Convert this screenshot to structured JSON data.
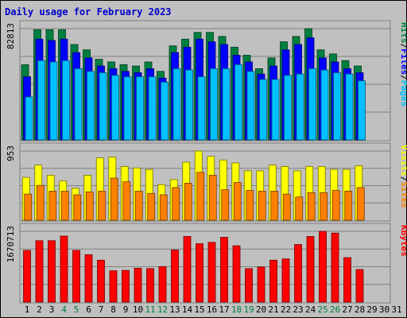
{
  "title": "Daily usage for February 2023",
  "colors": {
    "background": "#c0c0c0",
    "title": "#0000cc",
    "hits": "#008040",
    "files": "#0000ff",
    "pages": "#00c0ff",
    "visits": "#ffff00",
    "sites": "#ff8000",
    "kbytes": "#ff0000",
    "weekend_label": "#008040",
    "weekday_label": "#000000"
  },
  "chart_data": [
    {
      "type": "bar",
      "panel": "top",
      "axis_max_label": "82813",
      "ylim": [
        0,
        82813
      ],
      "legend": [
        "Pages",
        "/",
        "Files",
        "/",
        "Hits"
      ],
      "categories": [
        "1",
        "2",
        "3",
        "4",
        "5",
        "6",
        "7",
        "8",
        "9",
        "10",
        "11",
        "12",
        "13",
        "14",
        "15",
        "16",
        "17",
        "18",
        "19",
        "20",
        "21",
        "22",
        "23",
        "24",
        "25",
        "26",
        "27",
        "28",
        "29",
        "30",
        "31"
      ],
      "weekend_days": [
        4,
        5,
        11,
        12,
        18,
        19,
        25,
        26
      ],
      "series": [
        {
          "name": "Hits",
          "values": [
            56000,
            82000,
            82000,
            82000,
            71000,
            67000,
            60000,
            58000,
            56000,
            55000,
            58000,
            51000,
            70000,
            75000,
            80000,
            80000,
            77000,
            69000,
            63000,
            53000,
            61000,
            73000,
            77000,
            82813,
            67000,
            64000,
            59000,
            55000,
            0,
            0,
            0
          ]
        },
        {
          "name": "Files",
          "values": [
            47000,
            75000,
            74000,
            75000,
            65000,
            61000,
            55000,
            53000,
            51000,
            50000,
            53000,
            46000,
            65000,
            69000,
            75000,
            73000,
            71000,
            63000,
            58000,
            49000,
            55000,
            67000,
            71000,
            76000,
            61000,
            58000,
            53000,
            50000,
            0,
            0,
            0
          ]
        },
        {
          "name": "Pages",
          "values": [
            32000,
            59000,
            58000,
            59000,
            53000,
            51000,
            50000,
            48000,
            47000,
            47000,
            47000,
            43000,
            53000,
            52000,
            47000,
            53000,
            53000,
            56000,
            51000,
            45000,
            45000,
            48000,
            49000,
            53000,
            52000,
            50000,
            49000,
            44000,
            0,
            0,
            0
          ]
        }
      ]
    },
    {
      "type": "bar",
      "panel": "middle",
      "axis_max_label": "953",
      "ylim": [
        0,
        953
      ],
      "legend": [
        "Sites",
        "/",
        "Visits"
      ],
      "categories": [
        "1",
        "2",
        "3",
        "4",
        "5",
        "6",
        "7",
        "8",
        "9",
        "10",
        "11",
        "12",
        "13",
        "14",
        "15",
        "16",
        "17",
        "18",
        "19",
        "20",
        "21",
        "22",
        "23",
        "24",
        "25",
        "26",
        "27",
        "28",
        "29",
        "30",
        "31"
      ],
      "weekend_days": [
        4,
        5,
        11,
        12,
        18,
        19,
        25,
        26
      ],
      "series": [
        {
          "name": "Visits",
          "values": [
            590,
            760,
            620,
            540,
            440,
            620,
            860,
            870,
            740,
            720,
            700,
            490,
            560,
            800,
            953,
            880,
            830,
            790,
            680,
            680,
            760,
            740,
            680,
            740,
            740,
            700,
            700,
            750,
            0,
            0,
            0
          ]
        },
        {
          "name": "Sites",
          "values": [
            360,
            480,
            400,
            400,
            350,
            390,
            400,
            580,
            530,
            400,
            370,
            350,
            450,
            510,
            660,
            620,
            420,
            520,
            410,
            400,
            400,
            360,
            320,
            380,
            380,
            410,
            400,
            450,
            0,
            0,
            0
          ]
        }
      ]
    },
    {
      "type": "bar",
      "panel": "bottom",
      "axis_max_label": "1670713",
      "ylim": [
        0,
        1670713
      ],
      "legend": [
        "KBytes"
      ],
      "categories": [
        "1",
        "2",
        "3",
        "4",
        "5",
        "6",
        "7",
        "8",
        "9",
        "10",
        "11",
        "12",
        "13",
        "14",
        "15",
        "16",
        "17",
        "18",
        "19",
        "20",
        "21",
        "22",
        "23",
        "24",
        "25",
        "26",
        "27",
        "28",
        "29",
        "30",
        "31"
      ],
      "weekend_days": [
        4,
        5,
        11,
        12,
        18,
        19,
        25,
        26
      ],
      "series": [
        {
          "name": "KBytes",
          "values": [
            1220000,
            1450000,
            1450000,
            1560000,
            1220000,
            1120000,
            990000,
            740000,
            750000,
            800000,
            790000,
            840000,
            1230000,
            1550000,
            1380000,
            1410000,
            1530000,
            1330000,
            790000,
            830000,
            990000,
            1020000,
            1360000,
            1550000,
            1670713,
            1630000,
            1050000,
            770000,
            0,
            0,
            0
          ]
        }
      ]
    }
  ]
}
